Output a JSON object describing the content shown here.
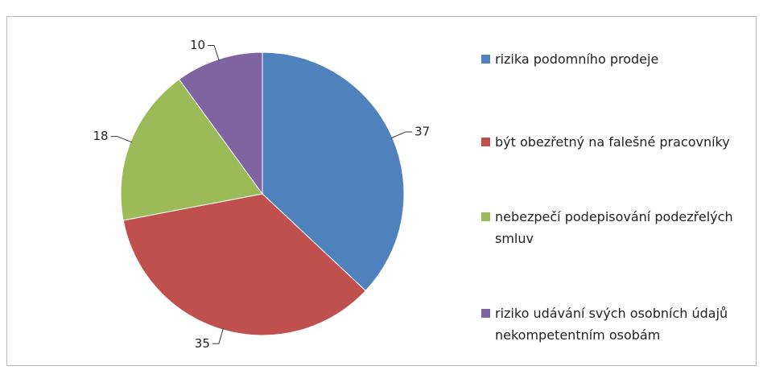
{
  "chart_data": {
    "type": "pie",
    "categories": [
      "rizika podomního prodeje",
      "být obezřetný na falešné pracovníky",
      "nebezpečí podepisování podezřelých smluv",
      "riziko udávání svých osobních údajů nekompetentním osobám"
    ],
    "values": [
      37,
      35,
      18,
      10
    ],
    "colors": [
      "#4f81bd",
      "#c0504d",
      "#9bbb59",
      "#8064a2"
    ],
    "legend": "right"
  }
}
